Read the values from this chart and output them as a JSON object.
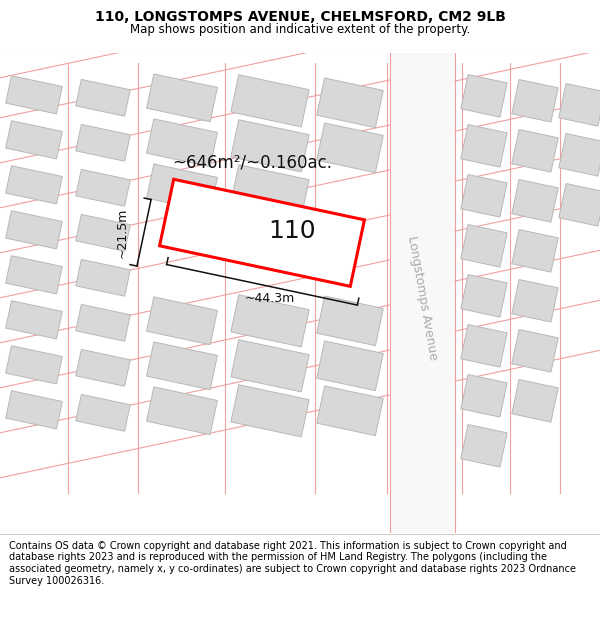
{
  "title_line1": "110, LONGSTOMPS AVENUE, CHELMSFORD, CM2 9LB",
  "title_line2": "Map shows position and indicative extent of the property.",
  "footer_text": "Contains OS data © Crown copyright and database right 2021. This information is subject to Crown copyright and database rights 2023 and is reproduced with the permission of HM Land Registry. The polygons (including the associated geometry, namely x, y co-ordinates) are subject to Crown copyright and database rights 2023 Ordnance Survey 100026316.",
  "area_label": "~646m²/~0.160ac.",
  "width_label": "~44.3m",
  "height_label": "~21.5m",
  "plot_number": "110",
  "street_label": "Longstomps Avenue",
  "bg_color": "#ffffff",
  "building_fill": "#d8d8d8",
  "building_edge": "#b8b8b8",
  "road_pink": "#f0a0a0",
  "plot_fill": "#ffffff",
  "plot_stroke": "#ff0000",
  "dim_color": "#111111",
  "street_label_color": "#aaaaaa",
  "title_fontsize": 10,
  "subtitle_fontsize": 8.5,
  "footer_fontsize": 7,
  "area_fontsize": 12,
  "number_fontsize": 18,
  "dim_fontsize": 9,
  "street_fontsize": 9,
  "tilt_deg": -12
}
